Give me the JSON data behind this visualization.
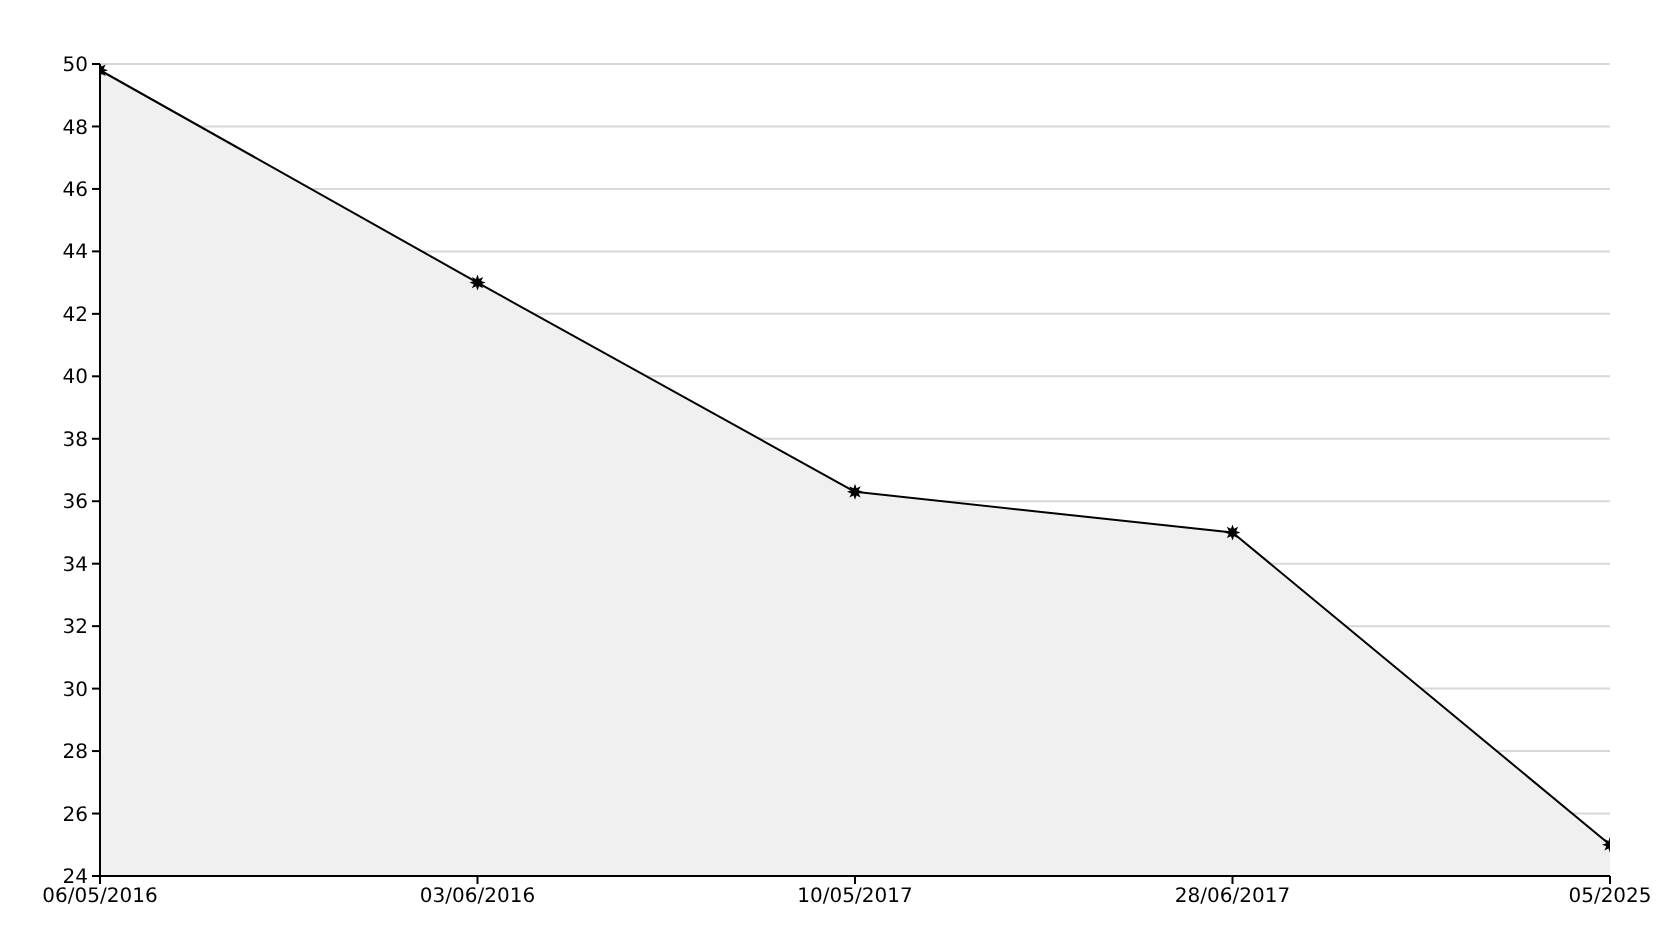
{
  "chart_data": {
    "type": "area",
    "categories": [
      "06/05/2016",
      "03/06/2016",
      "10/05/2017",
      "28/06/2017",
      "05/2025"
    ],
    "series": [
      {
        "color": "#000000",
        "values": [
          49.8,
          43,
          36.3,
          35,
          25
        ]
      }
    ],
    "ylim": [
      24,
      50
    ],
    "yticks": [
      24,
      26,
      28,
      30,
      32,
      34,
      36,
      38,
      40,
      42,
      44,
      46,
      48,
      50
    ],
    "grid": "y",
    "marker": "star",
    "line_style": "solid"
  }
}
